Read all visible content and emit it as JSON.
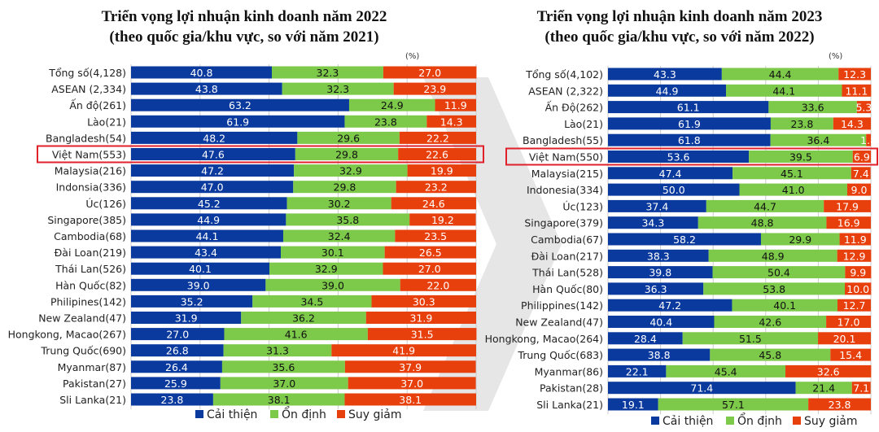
{
  "colors": {
    "improve": "#0B3A9E",
    "stable": "#7DC94A",
    "decline": "#E8400C",
    "highlight": "#E0202A"
  },
  "legend": [
    "Cải thiện",
    "Ổn định",
    "Suy giảm"
  ],
  "chart_data": [
    {
      "type": "bar",
      "stacked": true,
      "orientation": "horizontal",
      "title": "Triển vọng lợi nhuận kinh doanh năm 2022",
      "subtitle": "(theo quốc gia/khu vực, so với năm 2021)",
      "unit": "(%)",
      "highlight": "Việt Nam(553)",
      "categories": [
        "Tổng số(4,128)",
        "ASEAN (2,334)",
        "Ấn độ(261)",
        "Lào(21)",
        "Bangladesh(54)",
        "Việt Nam(553)",
        "Malaysia(216)",
        "Indonsia(336)",
        "Úc(126)",
        "Singapore(385)",
        "Cambodia(68)",
        "Đài Loan(219)",
        "Thái Lan(526)",
        "Hàn Quốc(82)",
        "Philipines(142)",
        "New Zealand(47)",
        "Hongkong, Macao(267)",
        "Trung Quốc(690)",
        "Myanmar(87)",
        "Pakistan(27)",
        "Sli Lanka(21)"
      ],
      "series": [
        {
          "name": "Cải thiện",
          "values": [
            40.8,
            43.8,
            63.2,
            61.9,
            48.2,
            47.6,
            47.2,
            47.0,
            45.2,
            44.9,
            44.1,
            43.4,
            40.1,
            39.0,
            35.2,
            31.9,
            27.0,
            26.8,
            26.4,
            25.9,
            23.8
          ]
        },
        {
          "name": "Ổn định",
          "values": [
            32.3,
            32.3,
            24.9,
            23.8,
            29.6,
            29.8,
            32.9,
            29.8,
            30.2,
            35.8,
            32.4,
            30.1,
            32.9,
            39.0,
            34.5,
            36.2,
            41.6,
            31.3,
            35.6,
            37.0,
            38.1
          ]
        },
        {
          "name": "Suy giảm",
          "values": [
            27.0,
            23.9,
            11.9,
            14.3,
            22.2,
            22.6,
            19.9,
            23.2,
            24.6,
            19.2,
            23.5,
            26.5,
            27.0,
            22.0,
            30.3,
            31.9,
            31.5,
            41.9,
            37.9,
            37.0,
            38.1
          ]
        }
      ],
      "xlim": [
        0,
        100
      ]
    },
    {
      "type": "bar",
      "stacked": true,
      "orientation": "horizontal",
      "title": "Triển vọng lợi nhuận kinh doanh năm 2023",
      "subtitle": "(theo quốc gia/khu vực, so với năm 2022)",
      "unit": "(%)",
      "highlight": "Việt Nam(550)",
      "categories": [
        "Tổng số(4,102)",
        "ASEAN (2,322)",
        "Ấn Độ(262)",
        "Lào(21)",
        "Bangladesh(55)",
        "Việt Nam(550)",
        "Malaysia(215)",
        "Indonesia(334)",
        "Úc(123)",
        "Singapore(379)",
        "Cambodia(67)",
        "Đài Loan(217)",
        "Thái Lan(528)",
        "Hàn Quốc(80)",
        "Philippines(142)",
        "New Zealand(47)",
        "Hongkong, Macao(264)",
        "Trung Quốc(683)",
        "Myanmar(86)",
        "Pakistan(28)",
        "Sli Lanka(21)"
      ],
      "series": [
        {
          "name": "Cải thiện",
          "values": [
            43.3,
            44.9,
            61.1,
            61.9,
            61.8,
            53.6,
            47.4,
            50.0,
            37.4,
            34.3,
            58.2,
            38.3,
            39.8,
            36.3,
            47.2,
            40.4,
            28.4,
            38.8,
            22.1,
            71.4,
            19.1
          ]
        },
        {
          "name": "Ổn định",
          "values": [
            44.4,
            44.1,
            33.6,
            23.8,
            36.4,
            39.5,
            45.1,
            41.0,
            44.7,
            48.8,
            29.9,
            48.9,
            50.4,
            53.8,
            40.1,
            42.6,
            51.5,
            45.8,
            45.4,
            21.4,
            57.1
          ]
        },
        {
          "name": "Suy giảm",
          "values": [
            12.3,
            11.1,
            5.3,
            14.3,
            1.8,
            6.9,
            7.4,
            9.0,
            17.9,
            16.9,
            11.9,
            12.9,
            9.9,
            10.0,
            12.7,
            17.0,
            20.1,
            15.4,
            32.6,
            7.1,
            23.8
          ]
        }
      ],
      "xlim": [
        0,
        100
      ]
    }
  ]
}
